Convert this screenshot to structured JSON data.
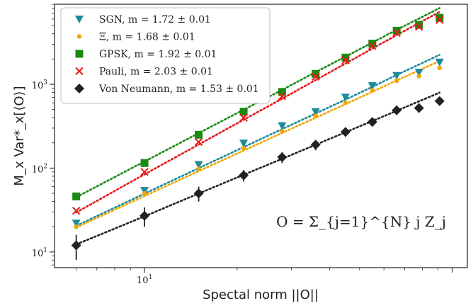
{
  "chart_data": {
    "type": "scatter",
    "xlabel": "Spectal norm ||O||",
    "ylabel": "M_x Var*_x[⟨O⟩]",
    "xscale": "log",
    "yscale": "log",
    "xlim": [
      5.1,
      112
    ],
    "ylim": [
      6.5,
      9000
    ],
    "x_tick_labels": [
      "10^1"
    ],
    "y_tick_labels": [
      "10^1",
      "10^2",
      "10^3"
    ],
    "legend_position": "top-left",
    "annotation": "O = Σ_{j=1}^{N} j Z_j",
    "x": [
      6,
      10,
      15,
      21,
      28,
      36,
      45,
      55,
      66,
      78,
      91
    ],
    "series": [
      {
        "name": "SGN, m = 1.72 ± 0.01",
        "color": "#1b8a9a",
        "marker": "triangle-down",
        "values": [
          22,
          54,
          110,
          198,
          320,
          470,
          700,
          960,
          1270,
          1390,
          1830
        ],
        "fit": [
          20.5,
          49.6,
          99.8,
          178,
          292,
          448,
          656,
          931,
          1291,
          1717,
          2245
        ]
      },
      {
        "name": "Ξ, m = 1.68 ± 0.01",
        "color": "#f0a500",
        "marker": "circle",
        "values": [
          20,
          50,
          98,
          172,
          275,
          420,
          600,
          850,
          1100,
          1250,
          1570
        ],
        "fit": [
          19.6,
          46.5,
          92.1,
          162,
          263,
          399,
          579,
          812,
          1113,
          1465,
          1896
        ]
      },
      {
        "name": "GPSK, m = 1.92 ± 0.01",
        "color": "#1a8a12",
        "marker": "square",
        "values": [
          46,
          115,
          250,
          470,
          810,
          1330,
          2080,
          3050,
          4350,
          5100,
          6200
        ],
        "fit": [
          45,
          120,
          261,
          497,
          856,
          1396,
          2137,
          3137,
          4460,
          6082,
          8101
        ]
      },
      {
        "name": "Pauli, m = 2.03 ± 0.01",
        "color": "#e61919",
        "marker": "x",
        "values": [
          31,
          90,
          205,
          400,
          720,
          1230,
          1930,
          2870,
          4100,
          4850,
          5850
        ],
        "fit": [
          29.6,
          84.3,
          191,
          378,
          672,
          1122,
          1766,
          2659,
          3859,
          5368,
          7299
        ]
      },
      {
        "name": "Von Neumann, m = 1.53 ± 0.01",
        "color": "#222222",
        "marker": "diamond",
        "values": [
          12,
          27,
          50,
          82,
          135,
          190,
          270,
          355,
          490,
          520,
          630
        ],
        "fit": [
          12.3,
          26.6,
          49.8,
          83.3,
          129,
          190,
          268,
          364,
          483,
          626,
          794
        ],
        "errors": [
          4,
          7,
          10,
          13,
          20,
          27,
          34,
          40,
          55,
          60,
          70
        ]
      }
    ]
  }
}
